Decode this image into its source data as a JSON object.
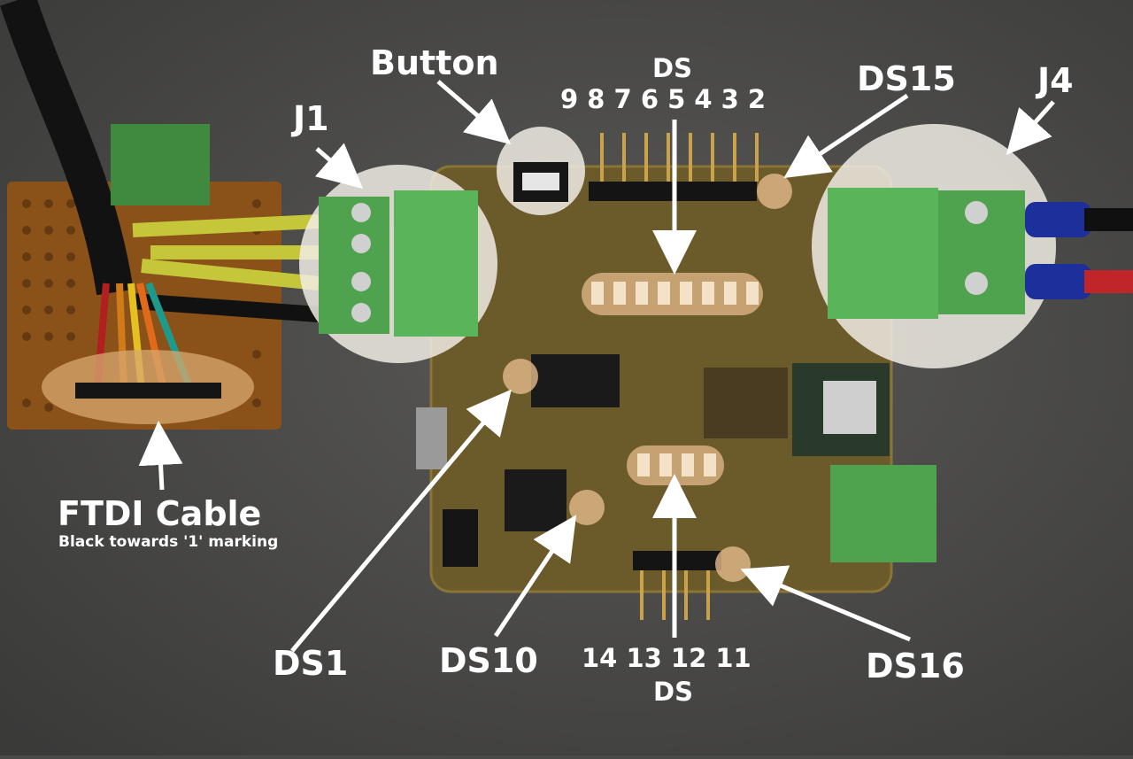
{
  "labels": {
    "button": "Button",
    "ds_top": "DS",
    "ds_top_numbers": "9 8 7 6 5 4 3 2",
    "ds15": "DS15",
    "j1": "J1",
    "j4": "J4",
    "ftdi_title": "FTDI Cable",
    "ftdi_note": "Black towards '1' marking",
    "ds1": "DS1",
    "ds10": "DS10",
    "ds_bottom_numbers": "14 13 12 11",
    "ds_bottom": "DS",
    "ds16": "DS16"
  },
  "colors": {
    "background": "#4a4a48",
    "pcb": "#6b5a2a",
    "connector": "#4fa34f",
    "protoboard": "#9a5a1a",
    "highlight": "#ffffff",
    "label": "#ffffff",
    "wire_yellow": "#d9d93a",
    "wire_red": "#c0252a",
    "wire_blue": "#1d2f9a"
  }
}
